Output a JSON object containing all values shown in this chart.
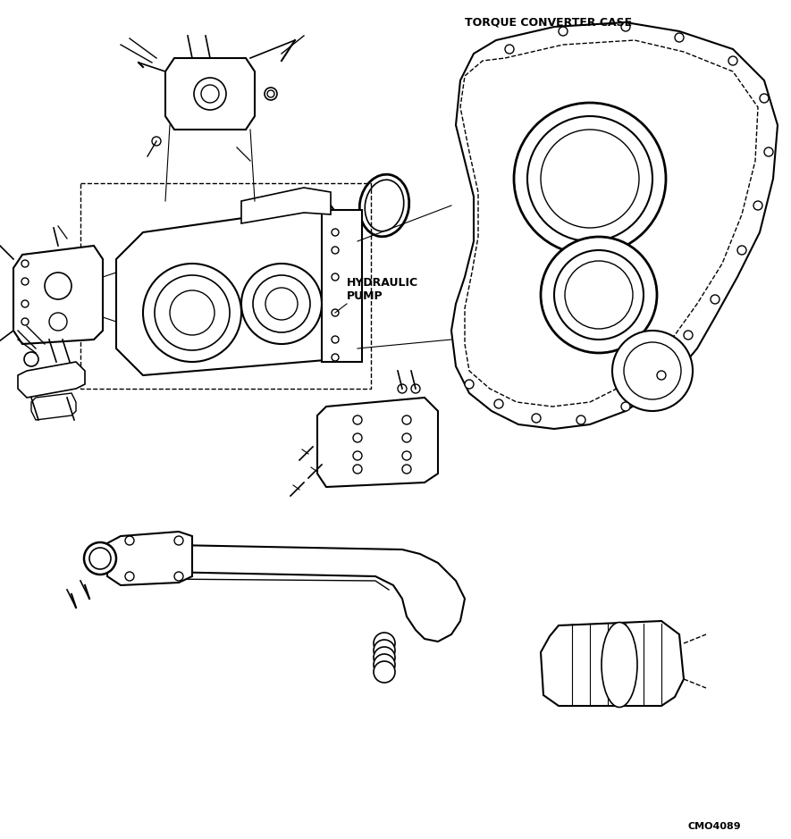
{
  "title_top_right": "TORQUE CONVERTER CASE",
  "label_hydraulic_pump": "HYDRAULIC\nPUMP",
  "label_bottom_right": "CMO4089",
  "bg_color": "#ffffff",
  "line_color": "#000000",
  "text_color": "#000000",
  "figsize": [
    8.85,
    9.39
  ],
  "dpi": 100
}
